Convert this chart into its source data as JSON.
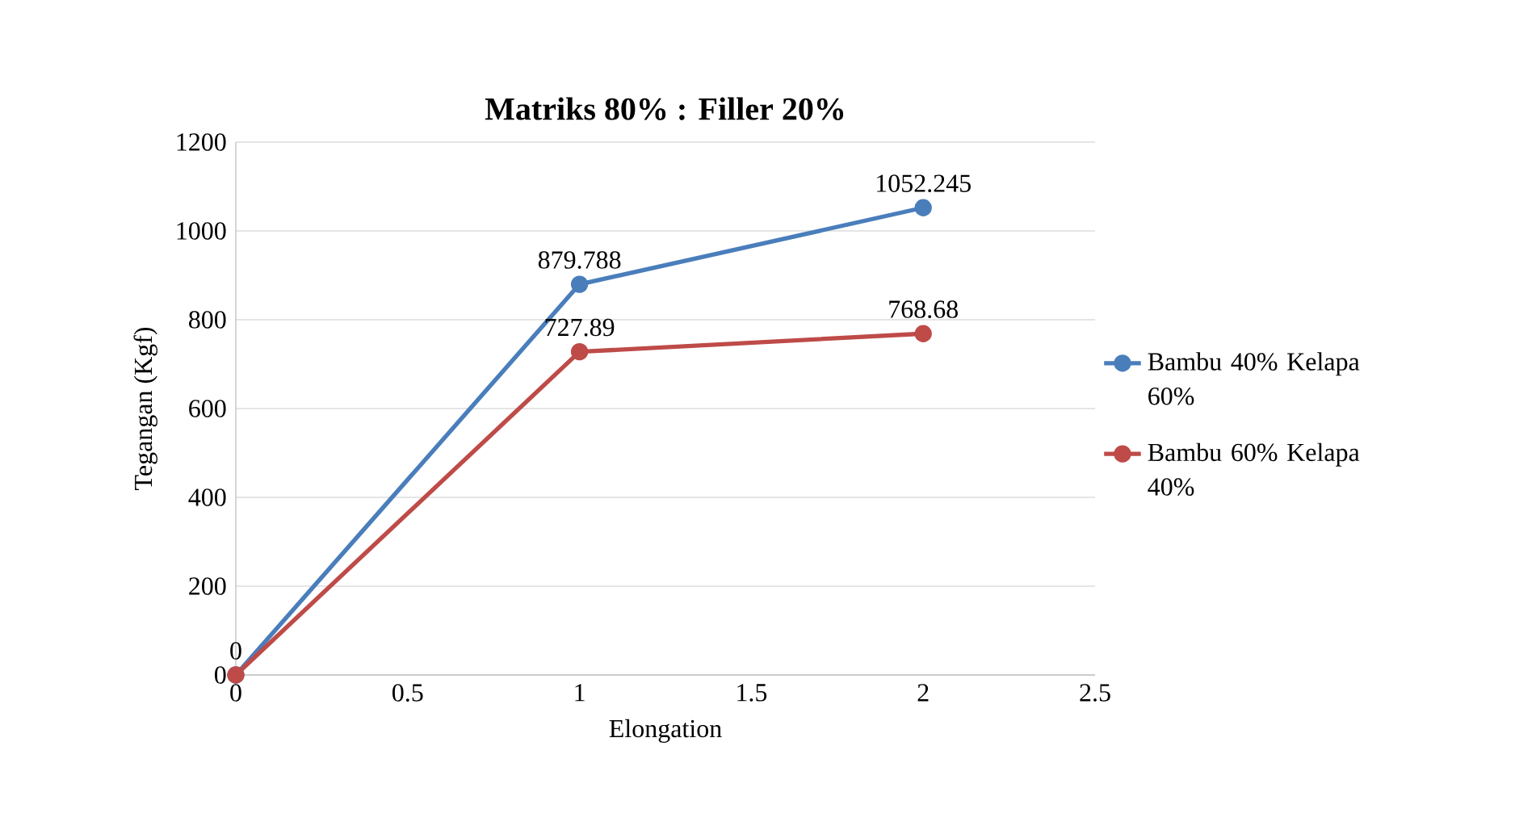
{
  "chart_data": {
    "type": "line",
    "title": "Matriks 80% : Filler 20%",
    "xlabel": "Elongation",
    "ylabel": "Tegangan (Kgf)",
    "x": [
      0,
      1,
      2
    ],
    "series": [
      {
        "name": "Bambu 40% Kelapa 60%",
        "color": "#4a7ebb",
        "values": [
          0,
          879.788,
          1052.245
        ],
        "value_labels": [
          "0",
          "879.788",
          "1052.245"
        ]
      },
      {
        "name": "Bambu 60% Kelapa 40%",
        "color": "#be4b48",
        "values": [
          0,
          727.89,
          768.68
        ],
        "value_labels": [
          null,
          "727.89",
          "768.68"
        ]
      }
    ],
    "xlim": [
      0,
      2.5
    ],
    "xticks": [
      0,
      0.5,
      1,
      1.5,
      2,
      2.5
    ],
    "ylim": [
      0,
      1200
    ],
    "yticks": [
      0,
      200,
      400,
      600,
      800,
      1000,
      1200
    ],
    "grid": "y",
    "legend": "right",
    "marker": "circle",
    "line_style": "solid"
  }
}
